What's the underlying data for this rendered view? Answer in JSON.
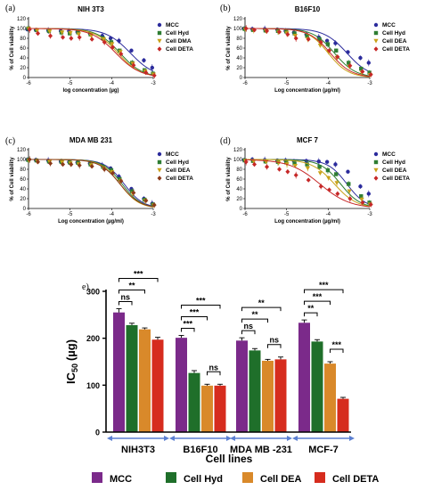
{
  "chart_data": [
    {
      "type": "line",
      "panel_letter": "(a)",
      "title": "NIH 3T3",
      "xlabel": "log concentration (µg)",
      "ylabel": "% of Cell viability",
      "xlim": [
        -6,
        -3
      ],
      "ylim": [
        0,
        120
      ],
      "xticks": [
        "-6",
        "-5",
        "-4",
        "-3"
      ],
      "yticks": [
        "0",
        "20",
        "40",
        "60",
        "80",
        "100",
        "120"
      ],
      "legend_position": "top-right",
      "series": [
        {
          "name": "MCC",
          "color": "#2b2b9c",
          "marker": "circle",
          "top": 100,
          "ec50": -3.55,
          "hill": 1.5,
          "x": [
            -6,
            -5.8,
            -5.5,
            -5.2,
            -5,
            -4.8,
            -4.5,
            -4.2,
            -4,
            -3.8,
            -3.5,
            -3.2,
            -3
          ],
          "y": [
            98,
            97,
            96,
            95,
            95,
            93,
            90,
            85,
            80,
            75,
            55,
            35,
            20
          ]
        },
        {
          "name": "Cell Hyd",
          "color": "#2e7d32",
          "marker": "square",
          "top": 100,
          "ec50": -3.8,
          "hill": 1.6,
          "x": [
            -6,
            -5.8,
            -5.5,
            -5.2,
            -5,
            -4.8,
            -4.5,
            -4.2,
            -4,
            -3.8,
            -3.5,
            -3.2,
            -3
          ],
          "y": [
            100,
            97,
            95,
            92,
            90,
            92,
            88,
            80,
            72,
            55,
            30,
            15,
            8
          ]
        },
        {
          "name": "Cell DMA",
          "color": "#c9a21a",
          "marker": "triangle-down",
          "top": 100,
          "ec50": -3.85,
          "hill": 1.6,
          "x": [
            -6,
            -5.8,
            -5.5,
            -5.2,
            -5,
            -4.8,
            -4.5,
            -4.2,
            -4,
            -3.8,
            -3.5,
            -3.2,
            -3
          ],
          "y": [
            99,
            96,
            94,
            92,
            91,
            88,
            85,
            78,
            68,
            52,
            28,
            12,
            6
          ]
        },
        {
          "name": "Cell DETA",
          "color": "#c62828",
          "marker": "diamond",
          "top": 100,
          "ec50": -3.9,
          "hill": 1.5,
          "x": [
            -6,
            -5.8,
            -5.5,
            -5.2,
            -5,
            -4.8,
            -4.5,
            -4.2,
            -4,
            -3.8,
            -3.5,
            -3.2,
            -3
          ],
          "y": [
            98,
            90,
            85,
            82,
            80,
            82,
            78,
            72,
            62,
            48,
            25,
            10,
            4
          ]
        }
      ]
    },
    {
      "type": "line",
      "panel_letter": "(b)",
      "title": "B16F10",
      "xlabel": "Log concentration (µg/ml)",
      "ylabel": "% of Cell viability",
      "xlim": [
        -6,
        -3
      ],
      "ylim": [
        0,
        120
      ],
      "xticks": [
        "-6",
        "-5",
        "-4",
        "-3"
      ],
      "yticks": [
        "0",
        "20",
        "40",
        "60",
        "80",
        "100",
        "120"
      ],
      "legend_position": "top-right",
      "series": [
        {
          "name": "MCC",
          "color": "#2b2b9c",
          "marker": "circle",
          "top": 100,
          "ec50": -3.55,
          "hill": 1.6,
          "x": [
            -6,
            -5.8,
            -5.5,
            -5.2,
            -5,
            -4.8,
            -4.5,
            -4.2,
            -4,
            -3.8,
            -3.5,
            -3.2,
            -3
          ],
          "y": [
            100,
            99,
            99,
            98,
            95,
            92,
            88,
            82,
            75,
            70,
            52,
            40,
            30
          ]
        },
        {
          "name": "Cell Hyd",
          "color": "#2e7d32",
          "marker": "square",
          "top": 100,
          "ec50": -3.85,
          "hill": 1.7,
          "x": [
            -6,
            -5.8,
            -5.5,
            -5.2,
            -5,
            -4.8,
            -4.5,
            -4.2,
            -4,
            -3.8,
            -3.5,
            -3.2,
            -3
          ],
          "y": [
            99,
            97,
            96,
            95,
            94,
            90,
            85,
            78,
            68,
            55,
            30,
            18,
            10
          ]
        },
        {
          "name": "Cell DEA",
          "color": "#c9a21a",
          "marker": "triangle-down",
          "top": 100,
          "ec50": -4.0,
          "hill": 1.8,
          "x": [
            -6,
            -5.8,
            -5.5,
            -5.2,
            -5,
            -4.8,
            -4.5,
            -4.2,
            -4,
            -3.8,
            -3.5,
            -3.2,
            -3
          ],
          "y": [
            98,
            96,
            94,
            92,
            90,
            85,
            78,
            65,
            52,
            40,
            22,
            10,
            5
          ]
        },
        {
          "name": "Cell DETA",
          "color": "#c62828",
          "marker": "diamond",
          "top": 100,
          "ec50": -3.95,
          "hill": 1.7,
          "x": [
            -6,
            -5.8,
            -5.5,
            -5.2,
            -5,
            -4.8,
            -4.5,
            -4.2,
            -4,
            -3.8,
            -3.5,
            -3.2,
            -3
          ],
          "y": [
            100,
            97,
            95,
            93,
            88,
            80,
            78,
            72,
            55,
            42,
            24,
            12,
            6
          ]
        }
      ]
    },
    {
      "type": "line",
      "panel_letter": "(c)",
      "title": "MDA MB 231",
      "xlabel": "Log concentration (µg/ml)",
      "ylabel": "% of Cell viability",
      "xlim": [
        -6,
        -3
      ],
      "ylim": [
        0,
        120
      ],
      "xticks": [
        "-6",
        "-5",
        "-4",
        "-3"
      ],
      "yticks": [
        "0",
        "20",
        "40",
        "60",
        "80",
        "100",
        "120"
      ],
      "legend_position": "top-right",
      "series": [
        {
          "name": "MCC",
          "color": "#2b2b9c",
          "marker": "circle",
          "top": 100,
          "ec50": -3.7,
          "hill": 1.9,
          "x": [
            -6,
            -5.8,
            -5.5,
            -5.2,
            -5,
            -4.8,
            -4.5,
            -4.2,
            -4,
            -3.8,
            -3.5,
            -3.2,
            -3
          ],
          "y": [
            100,
            99,
            98,
            96,
            95,
            94,
            92,
            88,
            82,
            65,
            40,
            20,
            10
          ]
        },
        {
          "name": "Cell Hyd",
          "color": "#2e7d32",
          "marker": "square",
          "top": 100,
          "ec50": -3.75,
          "hill": 1.9,
          "x": [
            -6,
            -5.8,
            -5.5,
            -5.2,
            -5,
            -4.8,
            -4.5,
            -4.2,
            -4,
            -3.8,
            -3.5,
            -3.2,
            -3
          ],
          "y": [
            99,
            98,
            96,
            95,
            94,
            93,
            90,
            85,
            78,
            60,
            35,
            18,
            8
          ]
        },
        {
          "name": "Cell DEA",
          "color": "#c9a21a",
          "marker": "triangle-down",
          "top": 100,
          "ec50": -3.8,
          "hill": 1.9,
          "x": [
            -6,
            -5.8,
            -5.5,
            -5.2,
            -5,
            -4.8,
            -4.5,
            -4.2,
            -4,
            -3.8,
            -3.5,
            -3.2,
            -3
          ],
          "y": [
            98,
            97,
            95,
            94,
            92,
            90,
            88,
            82,
            74,
            55,
            30,
            15,
            6
          ]
        },
        {
          "name": "Cell DETA",
          "color": "#8b3a1a",
          "marker": "diamond",
          "top": 100,
          "ec50": -3.8,
          "hill": 1.8,
          "x": [
            -6,
            -5.8,
            -5.5,
            -5.2,
            -5,
            -4.8,
            -4.5,
            -4.2,
            -4,
            -3.8,
            -3.5,
            -3.2,
            -3
          ],
          "y": [
            100,
            95,
            92,
            90,
            90,
            88,
            86,
            80,
            72,
            56,
            32,
            16,
            7
          ]
        }
      ]
    },
    {
      "type": "line",
      "panel_letter": "(d)",
      "title": "MCF 7",
      "xlabel": "Log concentration (µg/ml)",
      "ylabel": "% of Cell viability",
      "xlim": [
        -6,
        -3
      ],
      "ylim": [
        0,
        120
      ],
      "xticks": [
        "-6",
        "-5",
        "-4",
        "-3"
      ],
      "yticks": [
        "0",
        "20",
        "40",
        "60",
        "80",
        "100",
        "120"
      ],
      "legend_position": "top-right",
      "series": [
        {
          "name": "MCC",
          "color": "#2b2b9c",
          "marker": "circle",
          "top": 100,
          "ec50": -3.55,
          "hill": 1.9,
          "x": [
            -6,
            -5.8,
            -5.5,
            -5.2,
            -5,
            -4.8,
            -4.5,
            -4.2,
            -4,
            -3.8,
            -3.5,
            -3.2,
            -3
          ],
          "y": [
            99,
            100,
            99,
            98,
            98,
            97,
            97,
            96,
            95,
            90,
            75,
            45,
            30
          ]
        },
        {
          "name": "Cell Hyd",
          "color": "#2e7d32",
          "marker": "square",
          "top": 100,
          "ec50": -3.7,
          "hill": 1.8,
          "x": [
            -6,
            -5.8,
            -5.5,
            -5.2,
            -5,
            -4.8,
            -4.5,
            -4.2,
            -4,
            -3.8,
            -3.5,
            -3.2,
            -3
          ],
          "y": [
            98,
            97,
            96,
            95,
            94,
            92,
            90,
            85,
            78,
            70,
            50,
            25,
            12
          ]
        },
        {
          "name": "Cell DEA",
          "color": "#c9a21a",
          "marker": "triangle-down",
          "top": 100,
          "ec50": -3.85,
          "hill": 1.6,
          "x": [
            -6,
            -5.8,
            -5.5,
            -5.2,
            -5,
            -4.8,
            -4.5,
            -4.2,
            -4,
            -3.8,
            -3.5,
            -3.2,
            -3
          ],
          "y": [
            97,
            96,
            95,
            93,
            90,
            87,
            82,
            72,
            62,
            52,
            35,
            18,
            8
          ]
        },
        {
          "name": "Cell DETA",
          "color": "#c62828",
          "marker": "diamond",
          "top": 100,
          "ec50": -4.2,
          "hill": 1.2,
          "x": [
            -6,
            -5.8,
            -5.5,
            -5.2,
            -5,
            -4.8,
            -4.5,
            -4.2,
            -4,
            -3.8,
            -3.5,
            -3.2,
            -3
          ],
          "y": [
            95,
            90,
            85,
            80,
            75,
            68,
            58,
            45,
            38,
            30,
            20,
            12,
            8
          ]
        }
      ]
    },
    {
      "type": "bar",
      "panel_letter": "e)",
      "xlabel": "Cell lines",
      "ylabel": "IC50 (µg)",
      "ylabel_main": "IC",
      "ylabel_sub": "50",
      "ylabel_unit": "(µg)",
      "ylim": [
        0,
        300
      ],
      "yticks": [
        "0",
        "100",
        "200",
        "300"
      ],
      "categories": [
        "NIH3T3",
        "B16F10",
        "MDA MB -231",
        "MCF-7"
      ],
      "legend_position": "bottom",
      "series": [
        {
          "name": "MCC",
          "color": "#7b2a8a",
          "values": [
            255,
            201,
            195,
            233
          ],
          "errors": [
            8,
            5,
            6,
            6
          ]
        },
        {
          "name": "Cell Hyd",
          "color": "#1f6f2a",
          "values": [
            228,
            126,
            174,
            193
          ],
          "errors": [
            4,
            5,
            4,
            4
          ]
        },
        {
          "name": "Cell DEA",
          "color": "#d9892a",
          "values": [
            219,
            99,
            152,
            146
          ],
          "errors": [
            3,
            3,
            3,
            4
          ]
        },
        {
          "name": "Cell DETA",
          "color": "#d62c1e",
          "values": [
            197,
            99,
            155,
            71
          ],
          "errors": [
            5,
            3,
            5,
            3
          ]
        }
      ],
      "significance": [
        {
          "group": 0,
          "from": 0,
          "to": 3,
          "label": "***"
        },
        {
          "group": 0,
          "from": 0,
          "to": 2,
          "label": "**"
        },
        {
          "group": 0,
          "from": 0,
          "to": 1,
          "label": "ns"
        },
        {
          "group": 1,
          "from": 0,
          "to": 3,
          "label": "***"
        },
        {
          "group": 1,
          "from": 0,
          "to": 2,
          "label": "***"
        },
        {
          "group": 1,
          "from": 0,
          "to": 1,
          "label": "***"
        },
        {
          "group": 1,
          "from": 2,
          "to": 3,
          "label": "ns"
        },
        {
          "group": 2,
          "from": 0,
          "to": 3,
          "label": "**"
        },
        {
          "group": 2,
          "from": 0,
          "to": 2,
          "label": "**"
        },
        {
          "group": 2,
          "from": 0,
          "to": 1,
          "label": "ns"
        },
        {
          "group": 2,
          "from": 2,
          "to": 3,
          "label": "ns"
        },
        {
          "group": 3,
          "from": 0,
          "to": 3,
          "label": "***"
        },
        {
          "group": 3,
          "from": 0,
          "to": 2,
          "label": "***"
        },
        {
          "group": 3,
          "from": 0,
          "to": 1,
          "label": "**"
        },
        {
          "group": 3,
          "from": 2,
          "to": 3,
          "label": "***"
        }
      ]
    }
  ]
}
